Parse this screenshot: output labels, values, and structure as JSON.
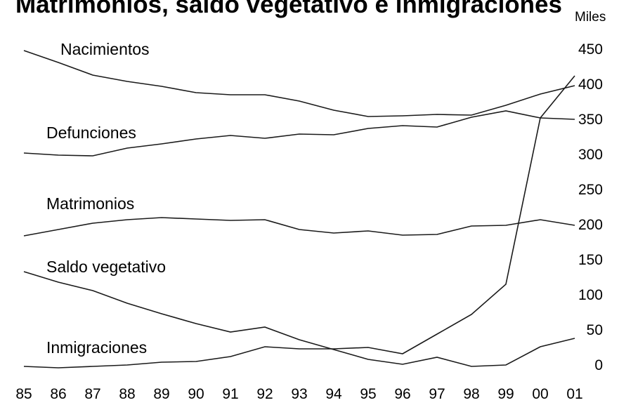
{
  "chart_data": {
    "type": "line",
    "title": "Matrimonios, saldo vegetativo e inmigraciones",
    "unit_label": "Miles",
    "x": [
      "85",
      "86",
      "87",
      "88",
      "89",
      "90",
      "91",
      "92",
      "93",
      "94",
      "95",
      "96",
      "97",
      "98",
      "99",
      "00",
      "01"
    ],
    "ylim": [
      0,
      450
    ],
    "yticks": [
      0,
      50,
      100,
      150,
      200,
      250,
      300,
      350,
      400,
      450
    ],
    "grid": false,
    "legend": "inline labels",
    "series": [
      {
        "name": "Nacimientos",
        "values": [
          448,
          431,
          413,
          404,
          397,
          388,
          385,
          385,
          376,
          363,
          354,
          355,
          357,
          356,
          370,
          386,
          398
        ]
      },
      {
        "name": "Defunciones",
        "values": [
          302,
          299,
          298,
          309,
          315,
          322,
          327,
          323,
          329,
          328,
          337,
          341,
          339,
          353,
          362,
          352,
          350
        ]
      },
      {
        "name": "Matrimonios",
        "values": [
          184,
          193,
          202,
          207,
          210,
          208,
          206,
          207,
          193,
          188,
          191,
          185,
          186,
          198,
          199,
          207,
          199
        ]
      },
      {
        "name": "Saldo vegetativo",
        "values": [
          133,
          118,
          106,
          88,
          73,
          59,
          47,
          54,
          36,
          22,
          8,
          1,
          11,
          -2,
          0,
          26,
          38
        ]
      },
      {
        "name": "Inmigraciones",
        "values": [
          -2,
          -4,
          -2,
          0,
          4,
          5,
          12,
          26,
          23,
          23,
          25,
          16,
          44,
          72,
          115,
          352,
          412
        ]
      }
    ]
  }
}
